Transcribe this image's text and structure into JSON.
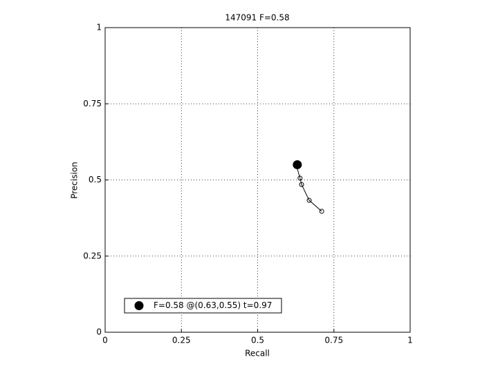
{
  "chart_data": {
    "type": "scatter",
    "title": "147091 F=0.58",
    "xlabel": "Recall",
    "ylabel": "Precision",
    "xlim": [
      0,
      1
    ],
    "ylim": [
      0,
      1
    ],
    "xticks": [
      0,
      0.25,
      0.5,
      0.75,
      1
    ],
    "yticks": [
      0,
      0.25,
      0.5,
      0.75,
      1
    ],
    "grid": true,
    "legend_position": "lower left",
    "series": [
      {
        "color": "#000000",
        "marker": "open-circle",
        "line": true,
        "x": [
          0.627,
          0.639,
          0.644,
          0.669,
          0.71
        ],
        "y": [
          0.547,
          0.506,
          0.485,
          0.433,
          0.397
        ]
      },
      {
        "name": "F=0.58 @(0.63,0.55) t=0.97",
        "color": "#000000",
        "marker": "filled-circle",
        "line": false,
        "x": [
          0.63
        ],
        "y": [
          0.55
        ]
      }
    ]
  }
}
